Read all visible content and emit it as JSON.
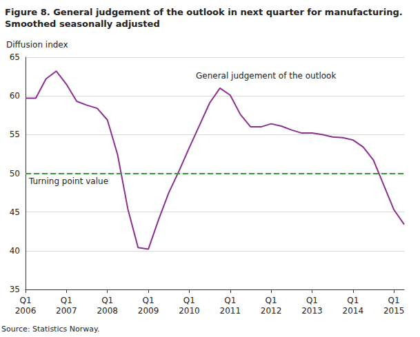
{
  "chart_data": {
    "type": "line",
    "title": "Figure 8. General judgement of the outlook in next quarter for manufacturing.\nSmoothed seasonally adjusted",
    "y_label": "Diffusion index",
    "source": "Source: Statistics Norway.",
    "annotations": [
      "General judgement of the outlook"
    ],
    "reference_lines": [
      {
        "value": 50,
        "label": "Turning point value",
        "color": "#339933",
        "line_style": "dashed"
      }
    ],
    "categories": [
      "Q1\n2006",
      null,
      null,
      null,
      "Q1\n2007",
      null,
      null,
      null,
      "Q1\n2008",
      null,
      null,
      null,
      "Q1\n2009",
      null,
      null,
      null,
      "Q1\n2010",
      null,
      null,
      null,
      "Q1\n2011",
      null,
      null,
      null,
      "Q1\n2012",
      null,
      null,
      null,
      "Q1\n2013",
      null,
      null,
      null,
      "Q1\n2014",
      null,
      null,
      null,
      "Q1\n2015",
      null
    ],
    "series": [
      {
        "name": "General judgement of the outlook",
        "color": "#8b2f8f",
        "values": [
          59.7,
          59.7,
          62.2,
          63.2,
          61.5,
          59.3,
          58.8,
          58.4,
          56.9,
          52.4,
          45.4,
          40.4,
          40.2,
          44.0,
          47.5,
          50.3,
          53.3,
          56.2,
          59.1,
          61.0,
          60.1,
          57.6,
          56.0,
          56.0,
          56.4,
          56.1,
          55.6,
          55.2,
          55.2,
          55.0,
          54.7,
          54.6,
          54.3,
          53.4,
          51.7,
          48.5,
          45.3,
          43.4
        ]
      }
    ],
    "ylim": [
      35,
      65
    ],
    "yticks": [
      35,
      40,
      45,
      50,
      55,
      60,
      65
    ],
    "grid": true
  }
}
